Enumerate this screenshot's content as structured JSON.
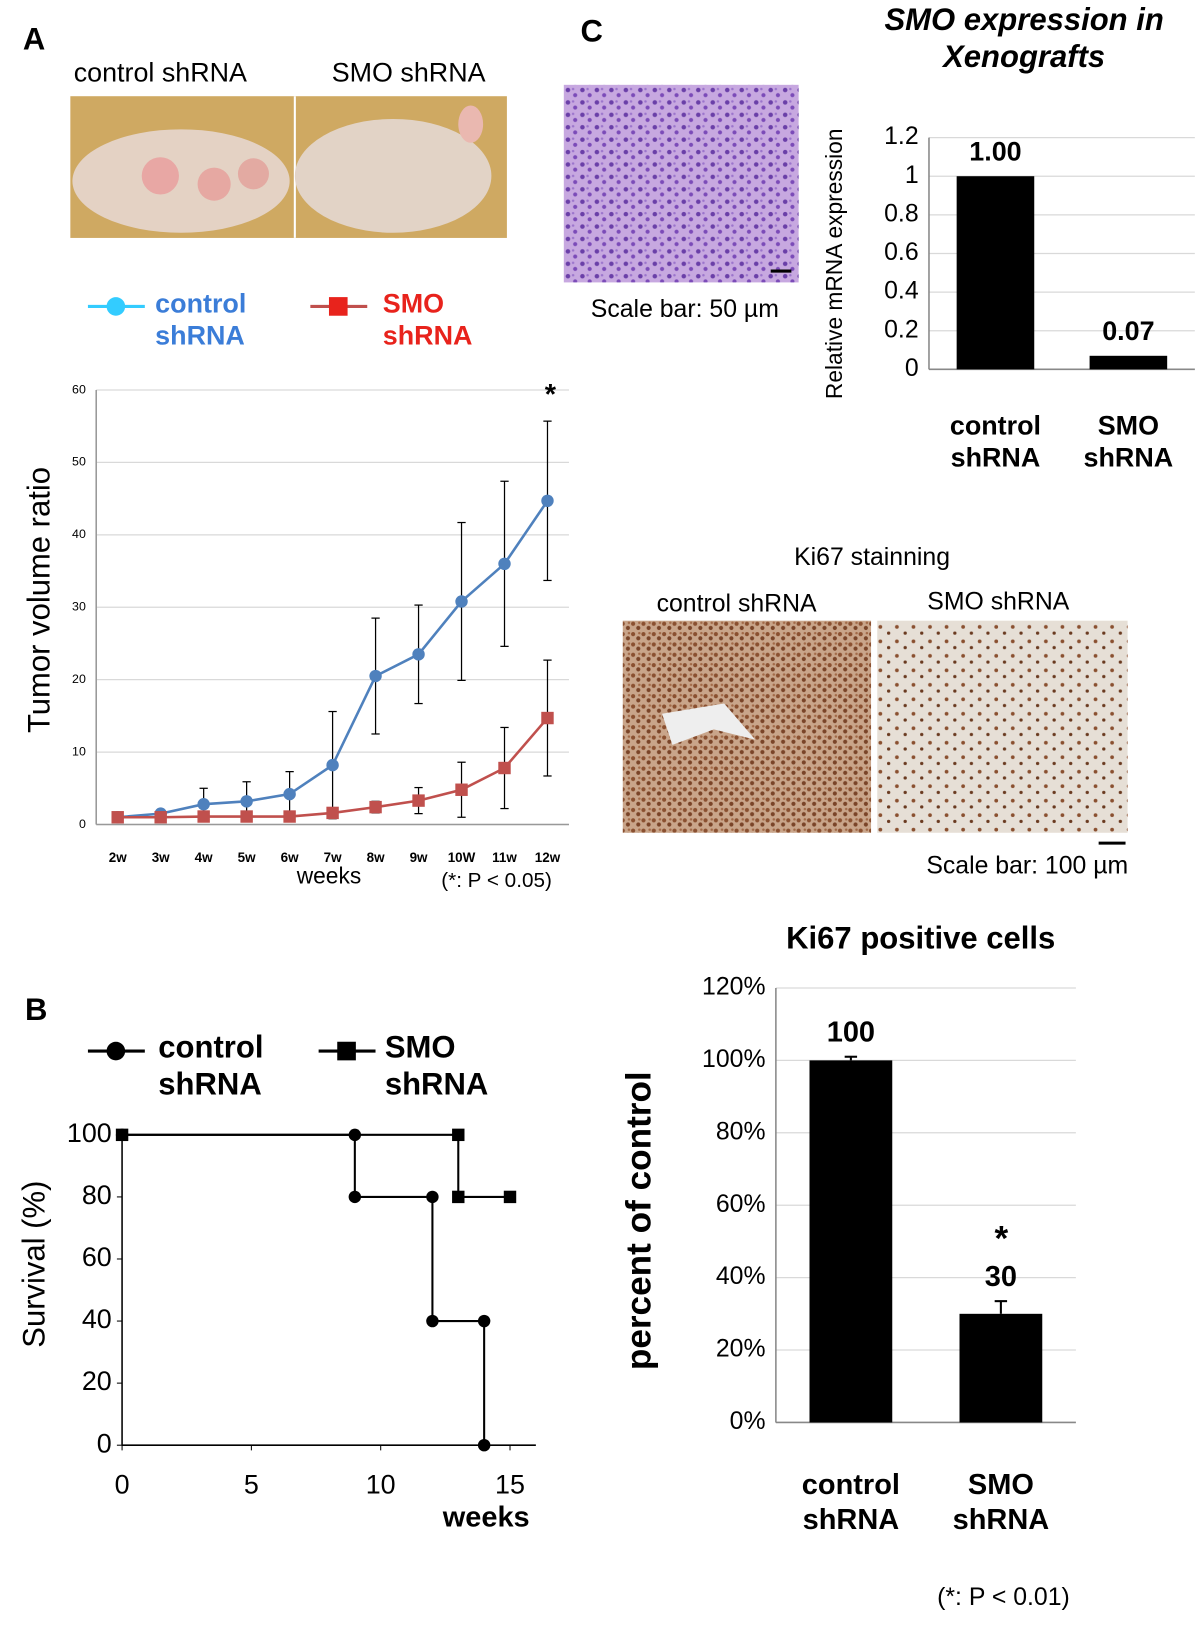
{
  "labels": {
    "panel_a": "A",
    "panel_b": "B",
    "panel_c": "C",
    "mouse_control": "control shRNA",
    "mouse_smo": "SMO shRNA",
    "he_scale": "Scale bar: 50 µm",
    "ki67_title": "Ki67 stainning",
    "ki67_control": "control shRNA",
    "ki67_smo": "SMO shRNA",
    "ki67_scale": "Scale bar: 100 µm"
  },
  "chart_data": [
    {
      "type": "line",
      "x_label": "weeks",
      "y_label": "Tumor volume ratio",
      "categories": [
        "2w",
        "3w",
        "4w",
        "5w",
        "6w",
        "7w",
        "8w",
        "9w",
        "10W",
        "11w",
        "12w"
      ],
      "ylim": [
        0,
        60
      ],
      "yticks": [
        0,
        10,
        20,
        30,
        40,
        50,
        60
      ],
      "grid": true,
      "series": [
        {
          "name": "control shRNA",
          "color": "#4f81bd",
          "marker": "circle",
          "values": [
            1,
            1.5,
            2.8,
            3.2,
            4.2,
            8.2,
            20.5,
            23.5,
            30.8,
            36,
            44.7
          ],
          "errors": [
            0.3,
            0.5,
            2.2,
            2.7,
            3.1,
            7.4,
            8,
            6.8,
            10.9,
            11.4,
            11
          ]
        },
        {
          "name": "SMO shRNA",
          "color": "#c0504d",
          "marker": "square",
          "values": [
            1,
            1,
            1.1,
            1.1,
            1.1,
            1.6,
            2.4,
            3.3,
            4.8,
            7.8,
            14.7
          ],
          "errors": [
            0.3,
            0.3,
            0.3,
            0.3,
            0.3,
            0.5,
            0.8,
            1.8,
            3.8,
            5.6,
            8
          ]
        }
      ],
      "annotations": [
        "*",
        "(*: P < 0.05)"
      ]
    },
    {
      "type": "step",
      "x_label": "weeks",
      "y_label": "Survival (%)",
      "xlim": [
        0,
        16
      ],
      "xticks": [
        0,
        5,
        10,
        15
      ],
      "ylim": [
        0,
        100
      ],
      "yticks": [
        0,
        20,
        40,
        60,
        80,
        100
      ],
      "grid": false,
      "series": [
        {
          "name": "control shRNA",
          "color": "#000000",
          "marker": "circle",
          "x": [
            0,
            9,
            9,
            12,
            12,
            14,
            14
          ],
          "values": [
            100,
            100,
            80,
            80,
            40,
            40,
            0
          ]
        },
        {
          "name": "SMO shRNA",
          "color": "#000000",
          "marker": "square",
          "x": [
            0,
            13,
            13,
            15
          ],
          "values": [
            100,
            100,
            80,
            80
          ]
        }
      ]
    },
    {
      "type": "bar",
      "title": "SMO expression in Xenografts",
      "y_label": "Relative mRNA expression",
      "categories": [
        "control shRNA",
        "SMO shRNA"
      ],
      "values": [
        1.0,
        0.07
      ],
      "value_labels": [
        "1.00",
        "0.07"
      ],
      "color": "#000000",
      "ylim": [
        0,
        1.2
      ],
      "yticks": [
        0,
        0.2,
        0.4,
        0.6,
        0.8,
        1,
        1.2
      ],
      "grid": true
    },
    {
      "type": "bar",
      "title": "Ki67 positive cells",
      "y_label": "percent of control",
      "categories": [
        "control shRNA",
        "SMO shRNA"
      ],
      "values": [
        100,
        30
      ],
      "errors": [
        1,
        3.5
      ],
      "color": "#000000",
      "ylim": [
        0,
        120
      ],
      "yticks": [
        {
          "value": 0,
          "label": "0%"
        },
        {
          "value": 20,
          "label": "20%"
        },
        {
          "value": 40,
          "label": "40%"
        },
        {
          "value": 60,
          "label": "60%"
        },
        {
          "value": 80,
          "label": "80%"
        },
        {
          "value": 100,
          "label": "100%"
        },
        {
          "value": 120,
          "label": "120%"
        }
      ],
      "grid": true,
      "annotations": [
        "*",
        "(*: P < 0.01)"
      ]
    }
  ]
}
